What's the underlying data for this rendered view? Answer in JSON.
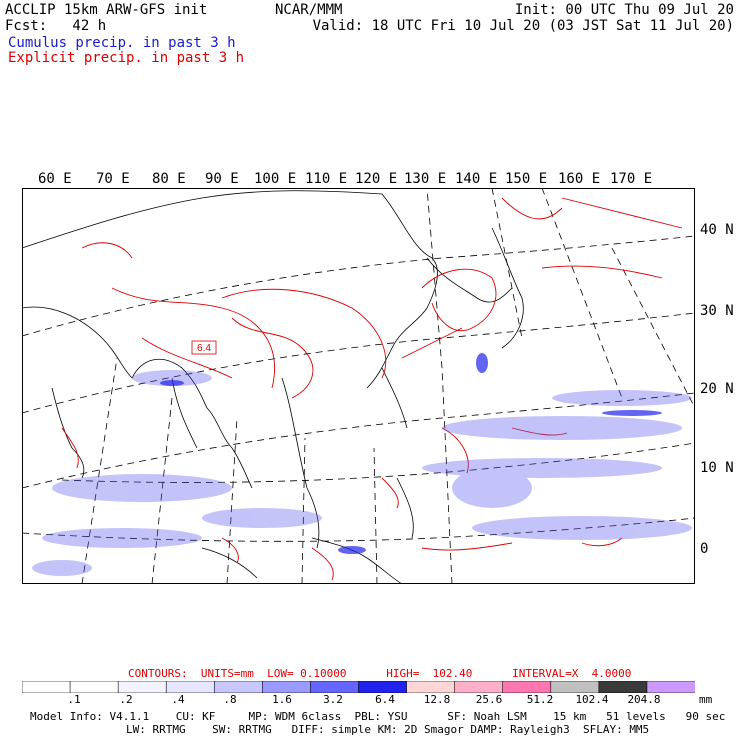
{
  "header": {
    "title_left": "ACCLIP 15km ARW-GFS init",
    "fcst_label": "Fcst:   42 h",
    "center_label": "NCAR/MMM",
    "init_label": "Init: 00 UTC Thu 09 Jul 20",
    "valid_label": "Valid: 18 UTC Fri 10 Jul 20 (03 JST Sat 11 Jul 20)",
    "legend_cumulus": "Cumulus precip. in past 3 h",
    "legend_explicit": "Explicit precip. in past 3 h"
  },
  "map": {
    "lon_labels": [
      "60 E",
      "70 E",
      "80 E",
      "90 E",
      "100 E",
      "110 E",
      "120 E",
      "130 E",
      "140 E",
      "150 E",
      "160 E",
      "170 E"
    ],
    "lat_labels": [
      "40 N",
      "30 N",
      "20 N",
      "10 N",
      "0"
    ],
    "contour_label": "6.4",
    "colors": {
      "cumulus": "#3333dd",
      "explicit": "#dd0000",
      "coast": "#000000"
    }
  },
  "footer": {
    "contours": "CONTOURS:  UNITS=mm  LOW= 0.10000      HIGH=  102.40      INTERVAL=X  4.0000",
    "colorbar_colors": [
      "#ffffff",
      "#ffffff",
      "#f3f3ff",
      "#e6e6ff",
      "#c8c8ff",
      "#9a9aff",
      "#6666ff",
      "#2222ee",
      "#ffd6d6",
      "#ffb0c8",
      "#ff77b0",
      "#c0c0c0",
      "#3a3a3a",
      "#cc99ff"
    ],
    "colorbar_ticks": [
      ".1",
      ".2",
      ".4",
      ".8",
      "1.6",
      "3.2",
      "6.4",
      "12.8",
      "25.6",
      "51.2",
      "102.4",
      "204.8"
    ],
    "units": "mm",
    "model_info_1": "Model Info: V4.1.1    CU: KF     MP: WDM 6class  PBL: YSU      SF: Noah LSM    15 km   51 levels   90 sec",
    "model_info_2": "LW: RRTMG    SW: RRTMG   DIFF: simple KM: 2D Smagor DAMP: Rayleigh3  SFLAY: MM5"
  }
}
